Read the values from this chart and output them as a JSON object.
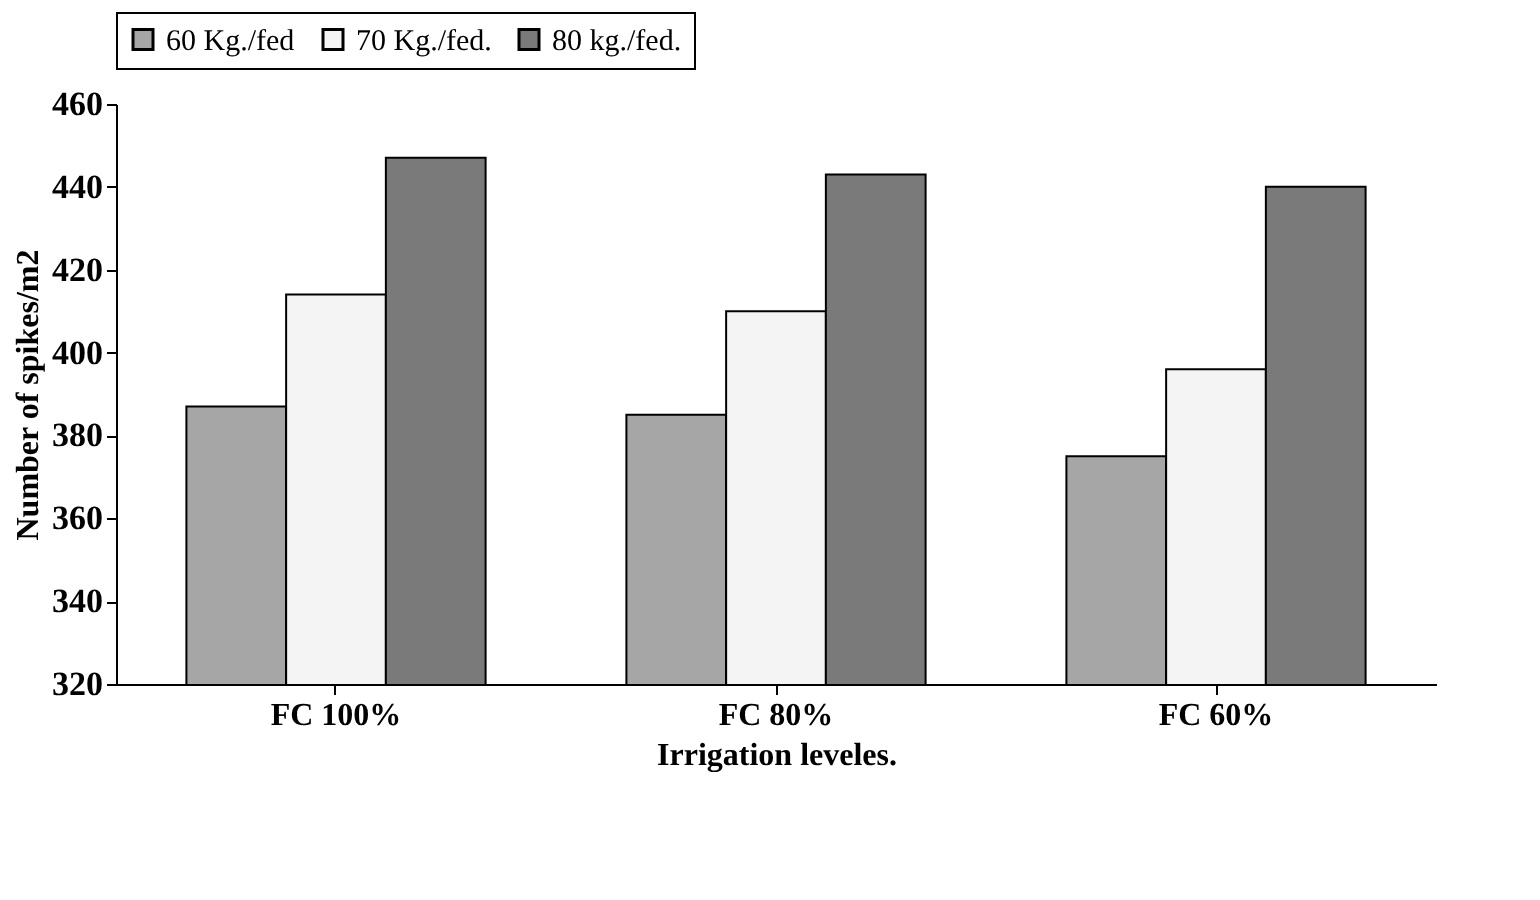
{
  "chart_data": {
    "type": "bar",
    "xlabel": "Irrigation leveles.",
    "ylabel": "Number of spikes/m2",
    "categories": [
      "FC 100%",
      "FC 80%",
      "FC 60%"
    ],
    "series": [
      {
        "name": "60 Kg./fed",
        "color": "#a6a6a6",
        "values": [
          387,
          385,
          375
        ]
      },
      {
        "name": "70 Kg./fed.",
        "color": "#f4f4f4",
        "values": [
          414,
          410,
          396
        ]
      },
      {
        "name": "80 kg./fed.",
        "color": "#7a7a7a",
        "values": [
          447,
          443,
          440
        ]
      }
    ],
    "ylim": [
      320,
      460
    ],
    "yticks": [
      320,
      340,
      360,
      380,
      400,
      420,
      440,
      460
    ],
    "grid": false,
    "legend": "top"
  }
}
